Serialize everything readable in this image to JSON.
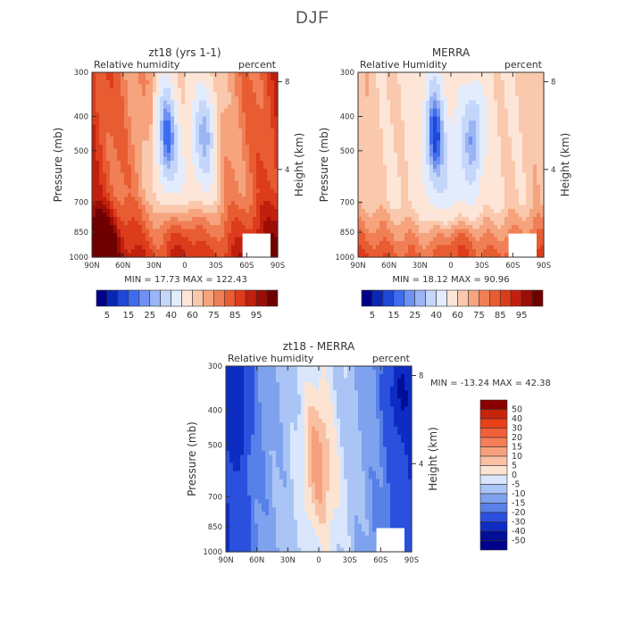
{
  "figure": {
    "title": "DJF"
  },
  "chart_data": [
    {
      "type": "heatmap",
      "title": "zt18 (yrs 1-1)",
      "subtitle_left": "Relative humidity",
      "subtitle_right": "percent",
      "ylabel": "Pressure (mb)",
      "y2label": "Height (km)",
      "x_ticks": [
        "90N",
        "60N",
        "30N",
        "0",
        "30S",
        "60S",
        "90S"
      ],
      "y_ticks": [
        "300",
        "400",
        "500",
        "700",
        "850",
        "1000"
      ],
      "y2_ticks": [
        "8",
        "4"
      ],
      "stats": "MIN = 17.73  MAX = 122.43",
      "colorbar": {
        "orientation": "horizontal",
        "labels": [
          "5",
          "15",
          "25",
          "40",
          "60",
          "75",
          "85",
          "95"
        ],
        "colors": [
          "#00008b",
          "#0a26b5",
          "#1f48d8",
          "#3e6cf0",
          "#6d90f2",
          "#9ab4f5",
          "#c4d6fa",
          "#e2ecfd",
          "#fde6d8",
          "#f9c8ad",
          "#f5a47e",
          "#f07f55",
          "#e85c32",
          "#dc3c1c",
          "#c2200e",
          "#9c0d05",
          "#6e0000"
        ]
      },
      "scheme": "model"
    },
    {
      "type": "heatmap",
      "title": "MERRA",
      "subtitle_left": "Relative Humidity",
      "subtitle_right": "percent",
      "ylabel": "Pressure (mb)",
      "y2label": "Height (km)",
      "x_ticks": [
        "90N",
        "60N",
        "30N",
        "0",
        "30S",
        "60S",
        "90S"
      ],
      "y_ticks": [
        "300",
        "400",
        "500",
        "700",
        "850",
        "1000"
      ],
      "y2_ticks": [
        "8",
        "4"
      ],
      "stats": "MIN = 18.12  MAX = 90.96",
      "colorbar": {
        "orientation": "horizontal",
        "labels": [
          "5",
          "15",
          "25",
          "40",
          "60",
          "75",
          "85",
          "95"
        ],
        "colors": [
          "#00008b",
          "#0a26b5",
          "#1f48d8",
          "#3e6cf0",
          "#6d90f2",
          "#9ab4f5",
          "#c4d6fa",
          "#e2ecfd",
          "#fde6d8",
          "#f9c8ad",
          "#f5a47e",
          "#f07f55",
          "#e85c32",
          "#dc3c1c",
          "#c2200e",
          "#9c0d05",
          "#6e0000"
        ]
      },
      "scheme": "obs"
    },
    {
      "type": "heatmap",
      "title": "zt18 - MERRA",
      "subtitle_left": "Relative humidity",
      "subtitle_right": "percent",
      "ylabel": "Pressure (mb)",
      "y2label": "Height (km)",
      "x_ticks": [
        "90N",
        "60N",
        "30N",
        "0",
        "30S",
        "60S",
        "90S"
      ],
      "y_ticks": [
        "300",
        "400",
        "500",
        "700",
        "850",
        "1000"
      ],
      "y2_ticks": [
        "8",
        "4"
      ],
      "stats": "MIN = -13.24   MAX =  42.38",
      "colorbar": {
        "orientation": "vertical",
        "labels": [
          "50",
          "40",
          "30",
          "20",
          "15",
          "10",
          "5",
          "0",
          "-5",
          "-10",
          "-15",
          "-20",
          "-30",
          "-40",
          "-50"
        ],
        "colors": [
          "#8b0000",
          "#c8240c",
          "#e84018",
          "#f2603a",
          "#f47f58",
          "#f7a07e",
          "#f9c0a4",
          "#fde4d2",
          "#d9e6fb",
          "#aac4f5",
          "#7ea2ee",
          "#5780e8",
          "#2a50de",
          "#0d2cc4",
          "#000e98",
          "#00008b"
        ]
      },
      "scheme": "diff"
    }
  ]
}
